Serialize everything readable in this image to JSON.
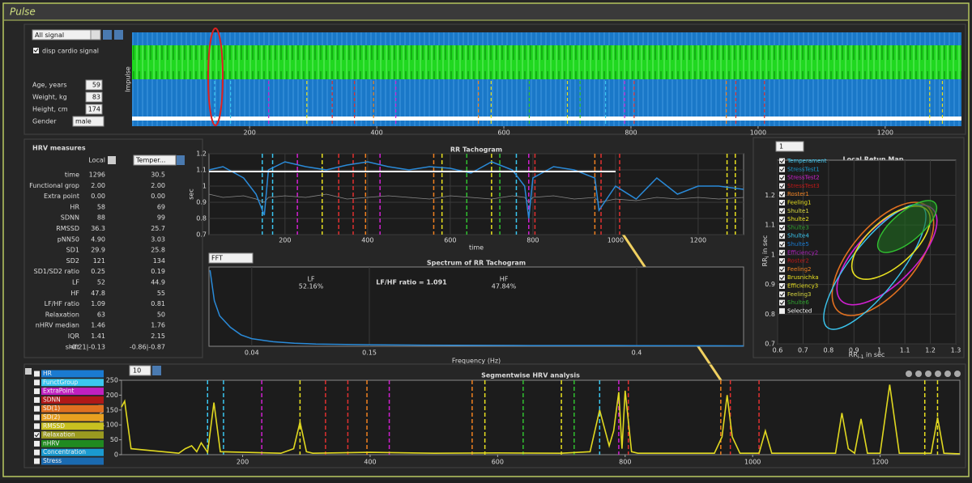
{
  "window": {
    "title": "Pulse"
  },
  "signal_panel": {
    "source": "All signal",
    "display_option": "disp cardio signal",
    "fields": [
      {
        "label": "Age, years",
        "value": "59"
      },
      {
        "label": "Weight, kg",
        "value": "83"
      },
      {
        "label": "Height, cm",
        "value": "174"
      }
    ],
    "gender_label": "Gender",
    "gender": "male",
    "ylabel": "Impulse",
    "xlim": [
      15,
      1320
    ],
    "xticks": [
      200,
      400,
      600,
      800,
      1000,
      1200
    ]
  },
  "hrv": {
    "title": "HRV measures",
    "local_label": "Local",
    "compare_with": "Temper...",
    "rows": [
      [
        "time",
        "1296",
        "30.5"
      ],
      [
        "Functional grop",
        "2.00",
        "2.00"
      ],
      [
        "Extra point",
        "0.00",
        "0.00"
      ],
      [
        "HR",
        "58",
        "69"
      ],
      [
        "SDNN",
        "88",
        "99"
      ],
      [
        "RMSSD",
        "36.3",
        "25.7"
      ],
      [
        "pNN50",
        "4.90",
        "3.03"
      ],
      [
        "SD1",
        "29.9",
        "25.8"
      ],
      [
        "SD2",
        "121",
        "134"
      ],
      [
        "SD1/SD2 ratio",
        "0.25",
        "0.19"
      ],
      [
        "LF",
        "52",
        "44.9"
      ],
      [
        "HF",
        "47.8",
        "55"
      ],
      [
        "LF/HF ratio",
        "1.09",
        "0.81"
      ],
      [
        "Relaxation",
        "63",
        "50"
      ],
      [
        "nHRV median",
        "1.46",
        "1.76"
      ],
      [
        "IQR",
        "1.41",
        "2.15"
      ],
      [
        "shift",
        "-0.21|-0.13",
        "-0.86|-0.87"
      ]
    ]
  },
  "markers": [
    {
      "x": 145,
      "color": "#3ac6f0"
    },
    {
      "x": 170,
      "color": "#3ac6f0"
    },
    {
      "x": 230,
      "color": "#d020d0"
    },
    {
      "x": 290,
      "color": "#e8e020"
    },
    {
      "x": 330,
      "color": "#e03030"
    },
    {
      "x": 365,
      "color": "#e03030"
    },
    {
      "x": 395,
      "color": "#f08020"
    },
    {
      "x": 430,
      "color": "#d020d0"
    },
    {
      "x": 560,
      "color": "#f08020"
    },
    {
      "x": 580,
      "color": "#e8e020"
    },
    {
      "x": 640,
      "color": "#30c030"
    },
    {
      "x": 700,
      "color": "#e8e020"
    },
    {
      "x": 720,
      "color": "#30c030"
    },
    {
      "x": 760,
      "color": "#3ac6f0"
    },
    {
      "x": 790,
      "color": "#d020d0"
    },
    {
      "x": 805,
      "color": "#e03030"
    },
    {
      "x": 950,
      "color": "#f08020"
    },
    {
      "x": 965,
      "color": "#e03030"
    },
    {
      "x": 1010,
      "color": "#e03030"
    },
    {
      "x": 1270,
      "color": "#e8e020"
    },
    {
      "x": 1290,
      "color": "#e8e020"
    }
  ],
  "tachogram": {
    "title": "RR Tachogram",
    "ylabel": "sec",
    "xlabel": "time",
    "grid": true,
    "xlim": [
      16,
      1310
    ],
    "ylim": [
      0.7,
      1.2
    ],
    "xticks": [
      200,
      400,
      600,
      800,
      1000,
      1200
    ],
    "yticks": [
      0.7,
      0.8,
      0.9,
      1,
      1.1,
      1.2
    ],
    "x": [
      16,
      50,
      100,
      130,
      150,
      160,
      200,
      250,
      300,
      350,
      400,
      450,
      500,
      550,
      600,
      650,
      700,
      750,
      780,
      790,
      800,
      850,
      900,
      950,
      960,
      1000,
      1050,
      1100,
      1150,
      1200,
      1250,
      1310
    ],
    "series": [
      {
        "color": "#2a8ad8",
        "values": [
          1.1,
          1.12,
          1.05,
          0.95,
          0.82,
          1.1,
          1.15,
          1.12,
          1.1,
          1.13,
          1.15,
          1.12,
          1.1,
          1.12,
          1.11,
          1.08,
          1.15,
          1.1,
          1.0,
          0.8,
          1.05,
          1.12,
          1.1,
          1.05,
          0.85,
          1.0,
          0.92,
          1.05,
          0.95,
          1.0,
          1.0,
          0.98
        ]
      },
      {
        "color": "#8a8a8a",
        "values": [
          0.95,
          0.93,
          0.94,
          0.92,
          0.9,
          0.93,
          0.94,
          0.93,
          0.95,
          0.92,
          0.93,
          0.94,
          0.93,
          0.92,
          0.94,
          0.93,
          0.92,
          0.94,
          0.93,
          0.9,
          0.93,
          0.94,
          0.92,
          0.93,
          0.9,
          0.92,
          0.91,
          0.93,
          0.92,
          0.93,
          0.92,
          0.93
        ]
      }
    ]
  },
  "spectrum": {
    "method": "FFT",
    "title": "Spectrum of RR Tachogram",
    "xlabel": "Frequency (Hz)",
    "grid": true,
    "lf_label": "LF",
    "lf_share": "52.16%",
    "ratio": "LF/HF ratio = 1.091",
    "hf_label": "HF",
    "hf_share": "47.84%",
    "xlim": [
      0,
      0.5
    ],
    "ylim": [
      0,
      100
    ],
    "xticks": [
      0.04,
      0.15,
      0.4
    ],
    "color": "#2a8ad8",
    "x": [
      0.001,
      0.005,
      0.01,
      0.02,
      0.03,
      0.04,
      0.06,
      0.08,
      0.1,
      0.15,
      0.2,
      0.3,
      0.4,
      0.5
    ],
    "values": [
      100,
      60,
      40,
      25,
      15,
      10,
      6,
      4,
      3,
      2,
      1.5,
      1,
      0.8,
      0.5
    ]
  },
  "return_map": {
    "selector": "1",
    "title": "Local Retun Map",
    "grid": true,
    "ylabel": "RR",
    "ylabel_sub": "i",
    "ylabel_unit": " in sec",
    "xlabel": "RR",
    "xlabel_sub": "i-1",
    "xlabel_unit": " in sec",
    "xlim": [
      0.6,
      1.3
    ],
    "ylim": [
      0.7,
      1.34
    ],
    "xticks": [
      0.6,
      0.7,
      0.8,
      0.9,
      1,
      1.1,
      1.2,
      1.3
    ],
    "yticks": [
      0.7,
      0.8,
      0.9,
      1,
      1.1,
      1.2
    ],
    "legend": [
      {
        "name": "Temperament",
        "color": "#3ac6f0",
        "checked": true
      },
      {
        "name": "StressTest1",
        "color": "#1a9ad0",
        "checked": true
      },
      {
        "name": "StressTest2",
        "color": "#d020d0",
        "checked": true
      },
      {
        "name": "StressTest3",
        "color": "#c01818",
        "checked": true
      },
      {
        "name": "Roster1",
        "color": "#f08020",
        "checked": true
      },
      {
        "name": "Feeling1",
        "color": "#e8e020",
        "checked": true
      },
      {
        "name": "Shulte1",
        "color": "#d8d840",
        "checked": true
      },
      {
        "name": "Shulte2",
        "color": "#e8e020",
        "checked": true
      },
      {
        "name": "Shulte3",
        "color": "#30a030",
        "checked": true
      },
      {
        "name": "Shulte4",
        "color": "#3ac6f0",
        "checked": true
      },
      {
        "name": "Shulte5",
        "color": "#1a7ad0",
        "checked": true
      },
      {
        "name": "Efficiency2",
        "color": "#b020c0",
        "checked": true
      },
      {
        "name": "Roster2",
        "color": "#c01818",
        "checked": true
      },
      {
        "name": "Feeling2",
        "color": "#f08020",
        "checked": true
      },
      {
        "name": "Brusnichka",
        "color": "#e8e020",
        "checked": true
      },
      {
        "name": "Efficiency3",
        "color": "#e8e020",
        "checked": true
      },
      {
        "name": "Feeling3",
        "color": "#d8d840",
        "checked": true
      },
      {
        "name": "Shulte6",
        "color": "#30a030",
        "checked": true
      },
      {
        "name": "Selected",
        "color": "#ffffff",
        "checked": false
      }
    ]
  },
  "segment": {
    "window": "10",
    "title": "Segmentwise HRV analysis",
    "ylabel": "bpm/val",
    "xlim": [
      10,
      1325
    ],
    "ylim": [
      0,
      250
    ],
    "xticks": [
      200,
      400,
      600,
      800,
      1000,
      1200
    ],
    "yticks": [
      0,
      50,
      100,
      150,
      200,
      250
    ],
    "color": "#e0d820",
    "x": [
      10,
      15,
      25,
      100,
      110,
      120,
      128,
      135,
      145,
      155,
      165,
      260,
      280,
      290,
      300,
      310,
      400,
      500,
      600,
      700,
      745,
      760,
      775,
      782,
      790,
      795,
      800,
      810,
      820,
      940,
      952,
      960,
      968,
      980,
      1010,
      1020,
      1030,
      1130,
      1140,
      1150,
      1160,
      1170,
      1180,
      1200,
      1215,
      1230,
      1280,
      1290,
      1300,
      1325
    ],
    "values": [
      160,
      180,
      20,
      5,
      20,
      30,
      10,
      40,
      8,
      175,
      10,
      5,
      20,
      110,
      10,
      5,
      8,
      5,
      6,
      5,
      10,
      150,
      30,
      80,
      210,
      20,
      215,
      10,
      5,
      5,
      60,
      200,
      60,
      5,
      5,
      80,
      5,
      5,
      140,
      20,
      5,
      120,
      5,
      5,
      235,
      5,
      5,
      125,
      5,
      3
    ],
    "indicators": [
      {
        "name": "HR",
        "color": "#1a7ad0",
        "checked": false
      },
      {
        "name": "FunctGroup",
        "color": "#3ac6f0",
        "checked": false
      },
      {
        "name": "ExtraPoint",
        "color": "#c020c0",
        "checked": false
      },
      {
        "name": "SDNN",
        "color": "#b01818",
        "checked": false
      },
      {
        "name": "SD(1)",
        "color": "#e07020",
        "checked": false
      },
      {
        "name": "SD(2)",
        "color": "#e8a020",
        "checked": false
      },
      {
        "name": "RMSSD",
        "color": "#c8c020",
        "checked": false
      },
      {
        "name": "Relaxation",
        "color": "#9a9a20",
        "checked": true
      },
      {
        "name": "nHRV",
        "color": "#208a20",
        "checked": false
      },
      {
        "name": "Concentration",
        "color": "#1a9ad0",
        "checked": false
      },
      {
        "name": "Stress",
        "color": "#1a6ab0",
        "checked": false
      }
    ]
  }
}
